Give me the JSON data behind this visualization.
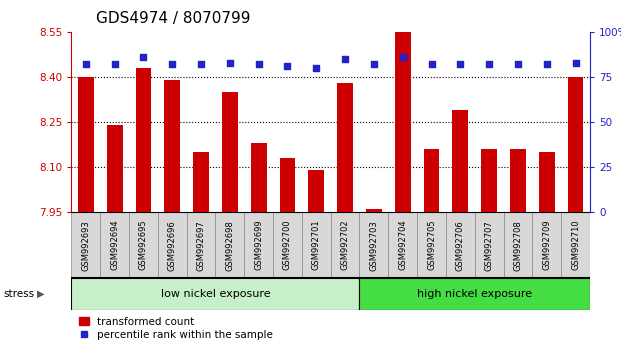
{
  "title": "GDS4974 / 8070799",
  "samples": [
    "GSM992693",
    "GSM992694",
    "GSM992695",
    "GSM992696",
    "GSM992697",
    "GSM992698",
    "GSM992699",
    "GSM992700",
    "GSM992701",
    "GSM992702",
    "GSM992703",
    "GSM992704",
    "GSM992705",
    "GSM992706",
    "GSM992707",
    "GSM992708",
    "GSM992709",
    "GSM992710"
  ],
  "transformed_counts": [
    8.4,
    8.24,
    8.43,
    8.39,
    8.15,
    8.35,
    8.18,
    8.13,
    8.09,
    8.38,
    7.96,
    8.55,
    8.16,
    8.29,
    8.16,
    8.16,
    8.15,
    8.4
  ],
  "percentile_ranks": [
    82,
    82,
    86,
    82,
    82,
    83,
    82,
    81,
    80,
    85,
    82,
    86,
    82,
    82,
    82,
    82,
    82,
    83
  ],
  "ylim_left": [
    7.95,
    8.55
  ],
  "ylim_right": [
    0,
    100
  ],
  "yticks_left": [
    7.95,
    8.1,
    8.25,
    8.4,
    8.55
  ],
  "yticks_right": [
    0,
    25,
    50,
    75,
    100
  ],
  "ytick_labels_right": [
    "0",
    "25",
    "50",
    "75",
    "100%"
  ],
  "grid_lines": [
    8.1,
    8.25,
    8.4
  ],
  "bar_color": "#cc0000",
  "dot_color": "#2222cc",
  "bar_width": 0.55,
  "group1_count": 10,
  "group1_label": "low nickel exposure",
  "group2_label": "high nickel exposure",
  "group1_color": "#c8f0c8",
  "group2_color": "#44dd44",
  "stress_label": "stress",
  "legend_bar_label": "transformed count",
  "legend_dot_label": "percentile rank within the sample",
  "title_fontsize": 11,
  "tick_fontsize": 7.5,
  "label_fontsize": 8,
  "ax_left_color": "#cc0000",
  "ax_right_color": "#2222cc",
  "xtick_cell_color": "#d8d8d8",
  "xtick_border_color": "#888888"
}
